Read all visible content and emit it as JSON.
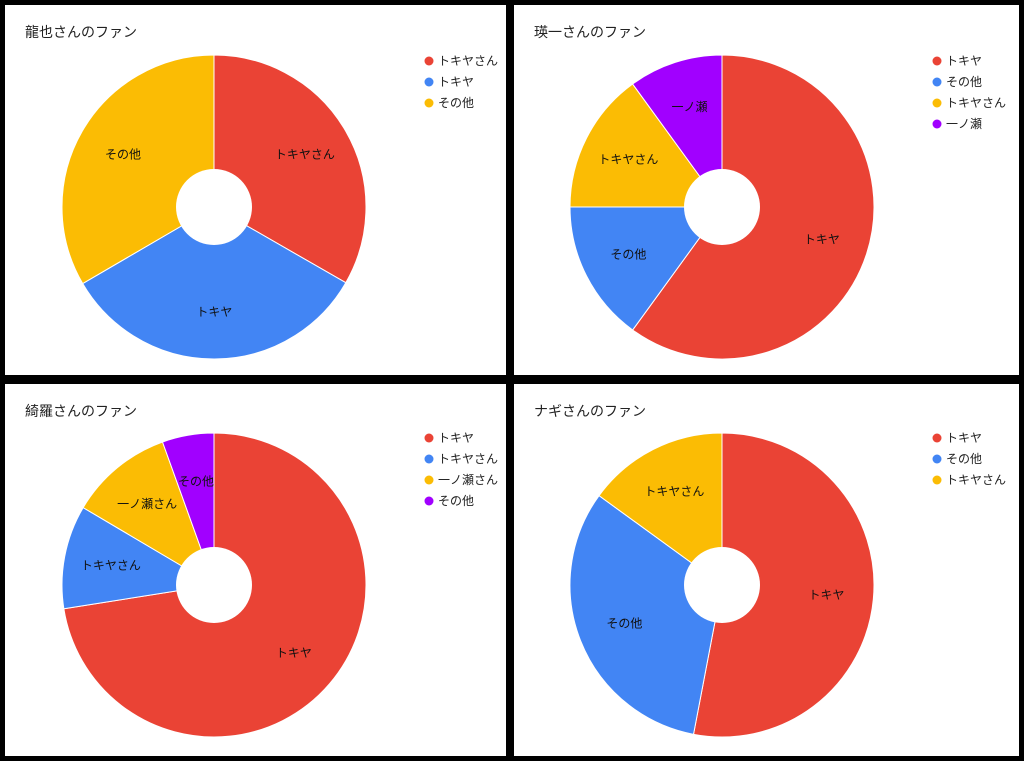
{
  "colors": {
    "red": "#EA4335",
    "blue": "#4285F4",
    "yellow": "#FBBC04",
    "purple": "#A100FF"
  },
  "chart_data": [
    {
      "type": "pie",
      "title": "龍也さんのファン",
      "slices": [
        {
          "label": "トキヤさん",
          "value": 33.3,
          "color": "#EA4335"
        },
        {
          "label": "トキヤ",
          "value": 33.3,
          "color": "#4285F4"
        },
        {
          "label": "その他",
          "value": 33.4,
          "color": "#FBBC04"
        }
      ],
      "legend": [
        "トキヤさん",
        "トキヤ",
        "その他"
      ],
      "legend_position": "right"
    },
    {
      "type": "pie",
      "title": "瑛一さんのファン",
      "slices": [
        {
          "label": "トキヤ",
          "value": 60,
          "color": "#EA4335"
        },
        {
          "label": "その他",
          "value": 15,
          "color": "#4285F4"
        },
        {
          "label": "トキヤさん",
          "value": 15,
          "color": "#FBBC04"
        },
        {
          "label": "一ノ瀬",
          "value": 10,
          "color": "#A100FF"
        }
      ],
      "legend": [
        "トキヤ",
        "その他",
        "トキヤさん",
        "一ノ瀬"
      ],
      "legend_position": "right"
    },
    {
      "type": "pie",
      "title": "綺羅さんのファン",
      "slices": [
        {
          "label": "トキヤ",
          "value": 72.5,
          "color": "#EA4335"
        },
        {
          "label": "トキヤさん",
          "value": 11,
          "color": "#4285F4"
        },
        {
          "label": "一ノ瀬さん",
          "value": 11,
          "color": "#FBBC04"
        },
        {
          "label": "その他",
          "value": 5.5,
          "color": "#A100FF"
        }
      ],
      "legend": [
        "トキヤ",
        "トキヤさん",
        "一ノ瀬さん",
        "その他"
      ],
      "legend_position": "right"
    },
    {
      "type": "pie",
      "title": "ナギさんのファン",
      "slices": [
        {
          "label": "トキヤ",
          "value": 53,
          "color": "#EA4335"
        },
        {
          "label": "その他",
          "value": 32,
          "color": "#4285F4"
        },
        {
          "label": "トキヤさん",
          "value": 15,
          "color": "#FBBC04"
        }
      ],
      "legend": [
        "トキヤ",
        "その他",
        "トキヤさん"
      ],
      "legend_position": "right"
    }
  ]
}
